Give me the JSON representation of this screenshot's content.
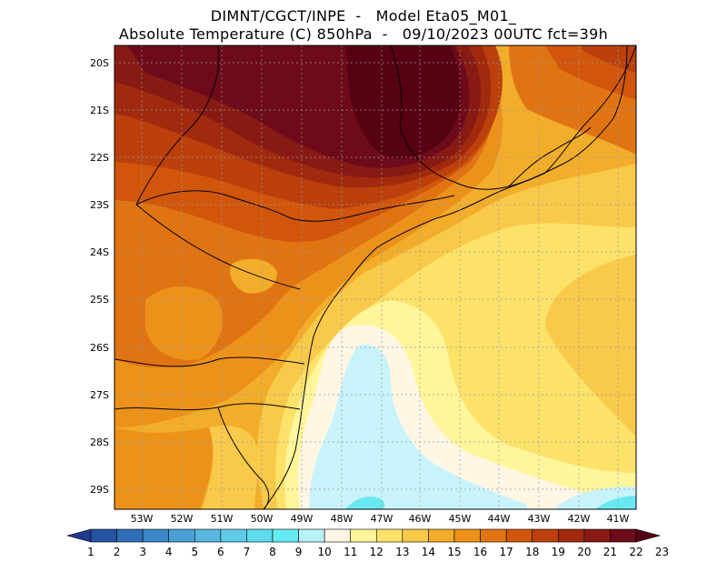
{
  "title": {
    "line1": "DIMNT/CGCT/INPE  -   Model Eta05_M01_",
    "line2": "Absolute Temperature (C) 850hPa  -   09/10/2023 00UTC fct=39h"
  },
  "axes": {
    "lat_labels": [
      "20S",
      "21S",
      "22S",
      "23S",
      "24S",
      "25S",
      "26S",
      "27S",
      "28S",
      "29S"
    ],
    "lon_labels": [
      "53W",
      "52W",
      "51W",
      "50W",
      "49W",
      "48W",
      "47W",
      "46W",
      "45W",
      "44W",
      "43W",
      "42W",
      "41W"
    ]
  },
  "colorbar": {
    "labels": [
      "1",
      "2",
      "3",
      "4",
      "5",
      "6",
      "7",
      "8",
      "9",
      "10",
      "11",
      "12",
      "13",
      "14",
      "15",
      "16",
      "17",
      "18",
      "19",
      "20",
      "21",
      "22",
      "23"
    ],
    "colors": [
      "#1f3a8f",
      "#2654a3",
      "#2f6fb8",
      "#3a88c8",
      "#4aa0d4",
      "#58b6de",
      "#5ecbe6",
      "#5fdcec",
      "#64ecf2",
      "#b8f1f7",
      "#fff6e4",
      "#fff59a",
      "#fde26a",
      "#f9c94a",
      "#f2ad2a",
      "#ec921a",
      "#e17412",
      "#d1560c",
      "#bb400c",
      "#a12a0e",
      "#881a14",
      "#6d0b1a",
      "#560212"
    ]
  },
  "map": {
    "colors": {
      "t11": "#fff6e4",
      "t10": "#c9f3fb",
      "t9": "#6ae8f2",
      "t12": "#fff59a",
      "t13": "#fde26a",
      "t14": "#f9c94a",
      "t15": "#f2ad2a",
      "t16": "#ec921a",
      "t17": "#e17412",
      "t18": "#d1560c",
      "t19": "#bb400c",
      "t20": "#a12a0e",
      "t21": "#881a14",
      "t22": "#6d0b1a",
      "t23": "#560212"
    }
  }
}
